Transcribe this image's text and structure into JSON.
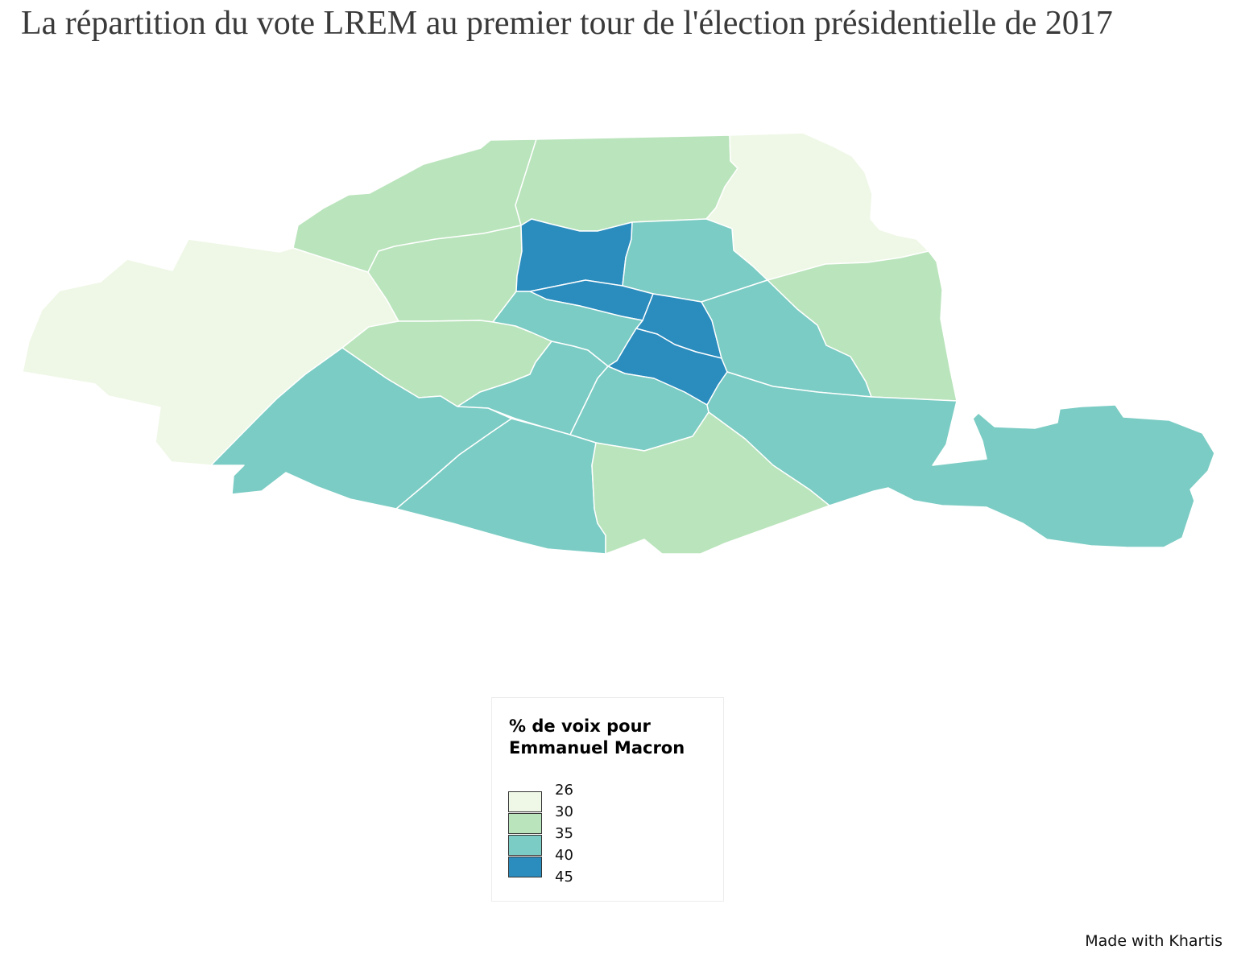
{
  "title": "La répartition du vote LREM au premier tour de l'élection présidentielle de 2017",
  "map": {
    "colors": {
      "class_26_30": "#eff8e7",
      "class_30_35": "#bae4bc",
      "class_35_40": "#7bccc4",
      "class_40_45": "#2b8cbe",
      "border": "#ffffff"
    }
  },
  "legend": {
    "title_line1": "% de voix pour",
    "title_line2": "Emmanuel Macron",
    "breaks": [
      "26",
      "30",
      "35",
      "40",
      "45"
    ],
    "classes": [
      {
        "from": 26,
        "to": 30,
        "color": "#eff8e7"
      },
      {
        "from": 30,
        "to": 35,
        "color": "#bae4bc"
      },
      {
        "from": 35,
        "to": 40,
        "color": "#7bccc4"
      },
      {
        "from": 40,
        "to": 45,
        "color": "#2b8cbe"
      }
    ]
  },
  "credit": "Made with Khartis"
}
